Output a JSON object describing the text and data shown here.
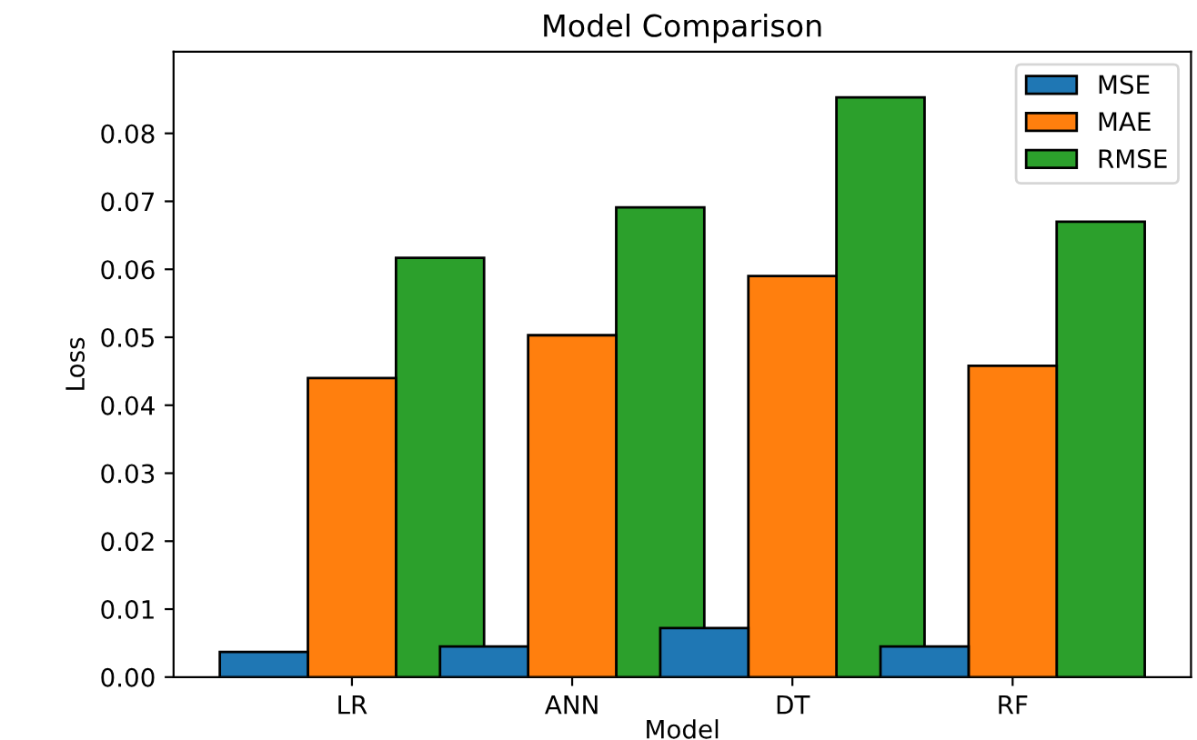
{
  "chart_data": {
    "type": "bar",
    "title": "Model Comparison",
    "xlabel": "Model",
    "ylabel": "Loss",
    "categories": [
      "LR",
      "ANN",
      "DT",
      "RF"
    ],
    "series": [
      {
        "name": "MSE",
        "color": "#1f77b4",
        "values": [
          0.0037,
          0.0045,
          0.0072,
          0.0045
        ]
      },
      {
        "name": "MAE",
        "color": "#ff7f0e",
        "values": [
          0.044,
          0.0503,
          0.059,
          0.0458
        ]
      },
      {
        "name": "RMSE",
        "color": "#2ca02c",
        "values": [
          0.0617,
          0.0691,
          0.0853,
          0.067
        ]
      }
    ],
    "ylim": [
      0,
      0.092
    ],
    "yticks": [
      {
        "value": 0,
        "label": "0.00"
      },
      {
        "value": 0.01,
        "label": "0.01"
      },
      {
        "value": 0.02,
        "label": "0.02"
      },
      {
        "value": 0.03,
        "label": "0.03"
      },
      {
        "value": 0.04,
        "label": "0.04"
      },
      {
        "value": 0.05,
        "label": "0.05"
      },
      {
        "value": 0.06,
        "label": "0.06"
      },
      {
        "value": 0.07,
        "label": "0.07"
      },
      {
        "value": 0.08,
        "label": "0.08"
      }
    ],
    "legend": "top right",
    "grid": false
  }
}
